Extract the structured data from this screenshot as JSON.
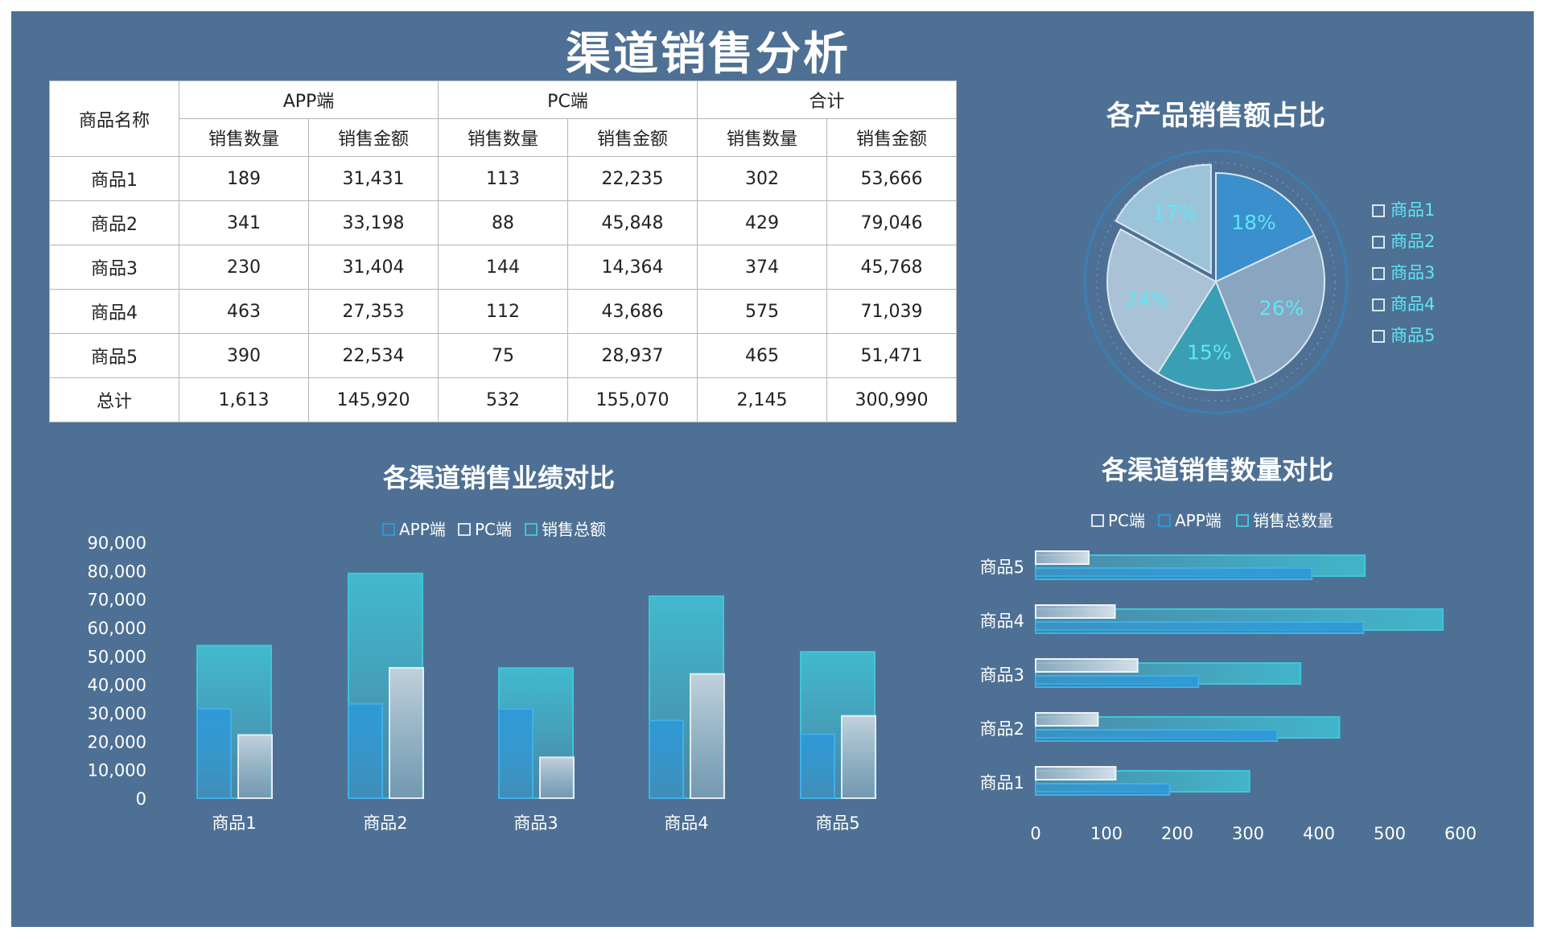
{
  "title": "渠道销售分析",
  "table": {
    "header_name": "商品名称",
    "groups": [
      "APP端",
      "PC端",
      "合计"
    ],
    "subheaders": [
      "销售数量",
      "销售金额",
      "销售数量",
      "销售金额",
      "销售数量",
      "销售金额"
    ],
    "rows": [
      {
        "name": "商品1",
        "cells": [
          "189",
          "31,431",
          "113",
          "22,235",
          "302",
          "53,666"
        ]
      },
      {
        "name": "商品2",
        "cells": [
          "341",
          "33,198",
          "88",
          "45,848",
          "429",
          "79,046"
        ]
      },
      {
        "name": "商品3",
        "cells": [
          "230",
          "31,404",
          "144",
          "14,364",
          "374",
          "45,768"
        ]
      },
      {
        "name": "商品4",
        "cells": [
          "463",
          "27,353",
          "112",
          "43,686",
          "575",
          "71,039"
        ]
      },
      {
        "name": "商品5",
        "cells": [
          "390",
          "22,534",
          "75",
          "28,937",
          "465",
          "51,471"
        ]
      },
      {
        "name": "总计",
        "cells": [
          "1,613",
          "145,920",
          "532",
          "155,070",
          "2,145",
          "300,990"
        ]
      }
    ]
  },
  "colors": {
    "panel": "#4e7094",
    "app": "#2e98d8",
    "pc": "#b9c6d2",
    "total": "#3fc6d8",
    "label_cyan": "#5fe6f6"
  },
  "chart_data": [
    {
      "type": "pie",
      "title": "各产品销售额占比",
      "categories": [
        "商品1",
        "商品2",
        "商品3",
        "商品4",
        "商品5"
      ],
      "values": [
        18,
        26,
        15,
        24,
        17
      ],
      "value_labels": [
        "18%",
        "26%",
        "15%",
        "24%",
        "17%"
      ],
      "legend": "right"
    },
    {
      "type": "bar",
      "title": "各渠道销售业绩对比",
      "categories": [
        "商品1",
        "商品2",
        "商品3",
        "商品4",
        "商品5"
      ],
      "series": [
        {
          "name": "APP端",
          "values": [
            31431,
            33198,
            31404,
            27353,
            22534
          ]
        },
        {
          "name": "PC端",
          "values": [
            22235,
            45848,
            14364,
            43686,
            28937
          ]
        },
        {
          "name": "销售总额",
          "values": [
            53666,
            79046,
            45768,
            71039,
            51471
          ]
        }
      ],
      "ylim": [
        0,
        90000
      ],
      "yticks": [
        "0",
        "10,000",
        "20,000",
        "30,000",
        "40,000",
        "50,000",
        "60,000",
        "70,000",
        "80,000",
        "90,000"
      ],
      "legend": "top"
    },
    {
      "type": "bar",
      "orientation": "horizontal",
      "title": "各渠道销售数量对比",
      "categories": [
        "商品1",
        "商品2",
        "商品3",
        "商品4",
        "商品5"
      ],
      "series": [
        {
          "name": "PC端",
          "values": [
            113,
            88,
            144,
            112,
            75
          ]
        },
        {
          "name": "APP端",
          "values": [
            189,
            341,
            230,
            463,
            390
          ]
        },
        {
          "name": "销售总数量",
          "values": [
            302,
            429,
            374,
            575,
            465
          ]
        }
      ],
      "xlim": [
        0,
        600
      ],
      "xticks": [
        "0",
        "100",
        "200",
        "300",
        "400",
        "500",
        "600"
      ],
      "legend": "top"
    }
  ]
}
